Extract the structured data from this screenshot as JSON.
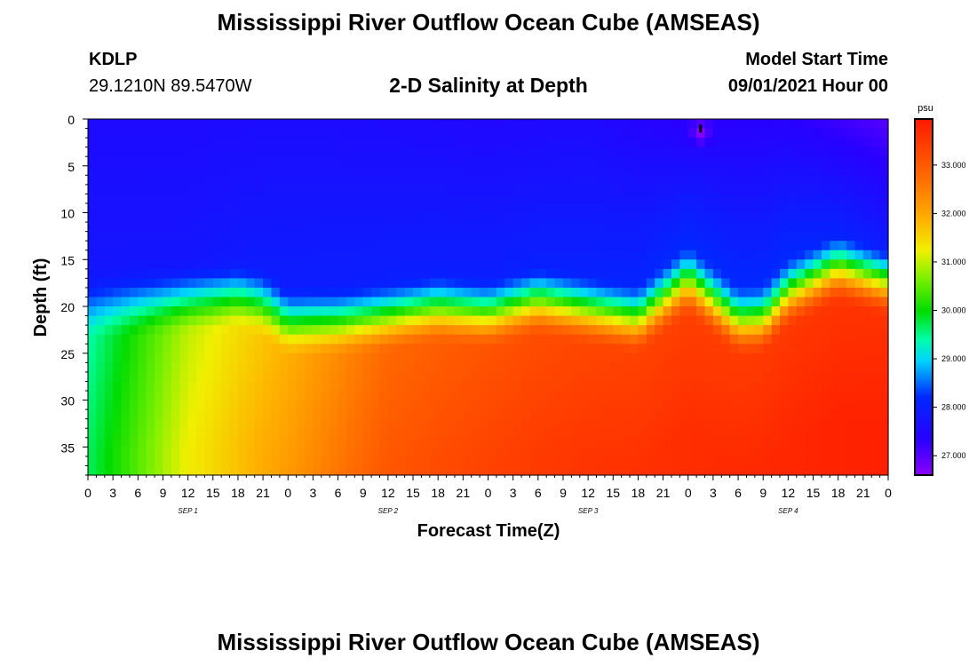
{
  "header": {
    "title_top": "Mississippi River Outflow Ocean Cube (AMSEAS)",
    "title_bottom": "Mississippi River Outflow Ocean Cube (AMSEAS)",
    "station_id": "KDLP",
    "station_coords": "29.1210N  89.5470W",
    "subtitle": "2-D Salinity at Depth",
    "model_label": "Model Start Time",
    "model_time": "09/01/2021 Hour 00"
  },
  "chart_data": {
    "type": "heatmap",
    "title": "2-D Salinity at Depth",
    "xlabel": "Forecast Time(Z)",
    "ylabel": "Depth (ft)",
    "x_hours_range": [
      0,
      96
    ],
    "y_range_ft": [
      0,
      38
    ],
    "y_ticks": [
      0,
      5,
      10,
      15,
      20,
      25,
      30,
      35
    ],
    "x_tick_labels": [
      "0",
      "3",
      "6",
      "9",
      "12",
      "15",
      "18",
      "21",
      "0",
      "3",
      "6",
      "9",
      "12",
      "15",
      "18",
      "21",
      "0",
      "3",
      "6",
      "9",
      "12",
      "15",
      "18",
      "21",
      "0",
      "3",
      "6",
      "9",
      "12",
      "15",
      "18",
      "21",
      "0"
    ],
    "day_labels": [
      {
        "hour": 12,
        "label": "SEP 1"
      },
      {
        "hour": 36,
        "label": "SEP 2"
      },
      {
        "hour": 60,
        "label": "SEP 3"
      },
      {
        "hour": 84,
        "label": "SEP 4"
      }
    ],
    "colorbar": {
      "unit": "psu",
      "min": 26.6,
      "max": 33.95,
      "tick_values": [
        27,
        28,
        29,
        30,
        31,
        32,
        33
      ],
      "tick_labels": [
        "27.000",
        "28.000",
        "29.000",
        "30.000",
        "31.000",
        "32.000",
        "33.000"
      ]
    },
    "halocline_depth_ft": [
      [
        0,
        20.0
      ],
      [
        6,
        19.6
      ],
      [
        12,
        19.2
      ],
      [
        18,
        18.8
      ],
      [
        21,
        19.6
      ],
      [
        24,
        21.6
      ],
      [
        30,
        21.6
      ],
      [
        36,
        21.0
      ],
      [
        42,
        20.2
      ],
      [
        48,
        20.8
      ],
      [
        54,
        19.4
      ],
      [
        60,
        20.4
      ],
      [
        66,
        21.4
      ],
      [
        72,
        17.2
      ],
      [
        78,
        21.6
      ],
      [
        81,
        21.4
      ],
      [
        84,
        18.6
      ],
      [
        90,
        15.8
      ],
      [
        96,
        17.4
      ]
    ],
    "surface_salinity_psu": [
      [
        0,
        27.55
      ],
      [
        12,
        27.55
      ],
      [
        24,
        27.6
      ],
      [
        36,
        27.55
      ],
      [
        48,
        27.5
      ],
      [
        60,
        27.55
      ],
      [
        72,
        27.3
      ],
      [
        84,
        27.35
      ],
      [
        96,
        27.0
      ]
    ],
    "mid_salinity_psu": [
      [
        0,
        27.8
      ],
      [
        12,
        27.8
      ],
      [
        24,
        27.95
      ],
      [
        36,
        28.0
      ],
      [
        48,
        28.0
      ],
      [
        60,
        28.05
      ],
      [
        72,
        28.2
      ],
      [
        84,
        28.2
      ],
      [
        96,
        27.9
      ]
    ],
    "deep_salinity_psu": [
      [
        0,
        29.4
      ],
      [
        12,
        31.0
      ],
      [
        24,
        31.9
      ],
      [
        36,
        32.8
      ],
      [
        48,
        33.1
      ],
      [
        60,
        33.3
      ],
      [
        72,
        33.4
      ],
      [
        84,
        33.5
      ],
      [
        96,
        33.6
      ]
    ],
    "annotations": [
      {
        "type": "surface-low-salinity-spot",
        "hour": 73.5,
        "depth_ft": 1.5,
        "value_psu": 26.65
      }
    ]
  }
}
